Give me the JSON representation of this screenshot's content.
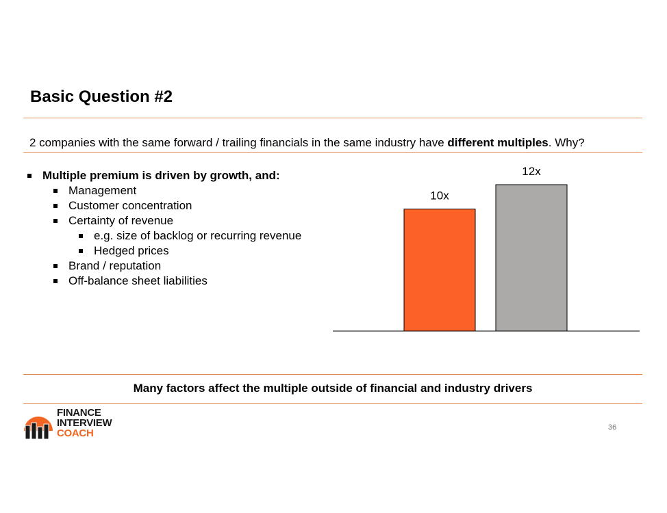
{
  "slide": {
    "title": "Basic Question #2",
    "question_before": "2 companies with the same forward / trailing financials in the same industry have ",
    "question_bold": "different multiples",
    "question_after": ". Why?",
    "lead_bullet": "Multiple premium is driven by growth, and:",
    "sub_bullets": [
      "Management",
      "Customer concentration",
      "Certainty of revenue"
    ],
    "sub_sub_bullets": [
      "e.g. size of backlog or recurring revenue",
      "Hedged prices"
    ],
    "more_bullets": [
      "Brand / reputation",
      "Off-balance sheet liabilities"
    ],
    "footer": "Many factors affect the multiple outside of financial and industry drivers",
    "page_number": "36"
  },
  "logo": {
    "line1": "FINANCE",
    "line2": "INTERVIEW",
    "line3": "COACH",
    "accent_color": "#f26522"
  },
  "chart_data": {
    "type": "bar",
    "categories": [
      "",
      ""
    ],
    "values": [
      10,
      12
    ],
    "data_labels": [
      "10x",
      "12x"
    ],
    "colors": [
      "#fc6128",
      "#acaaa8"
    ],
    "title": "",
    "xlabel": "",
    "ylabel": "",
    "grid": false
  }
}
